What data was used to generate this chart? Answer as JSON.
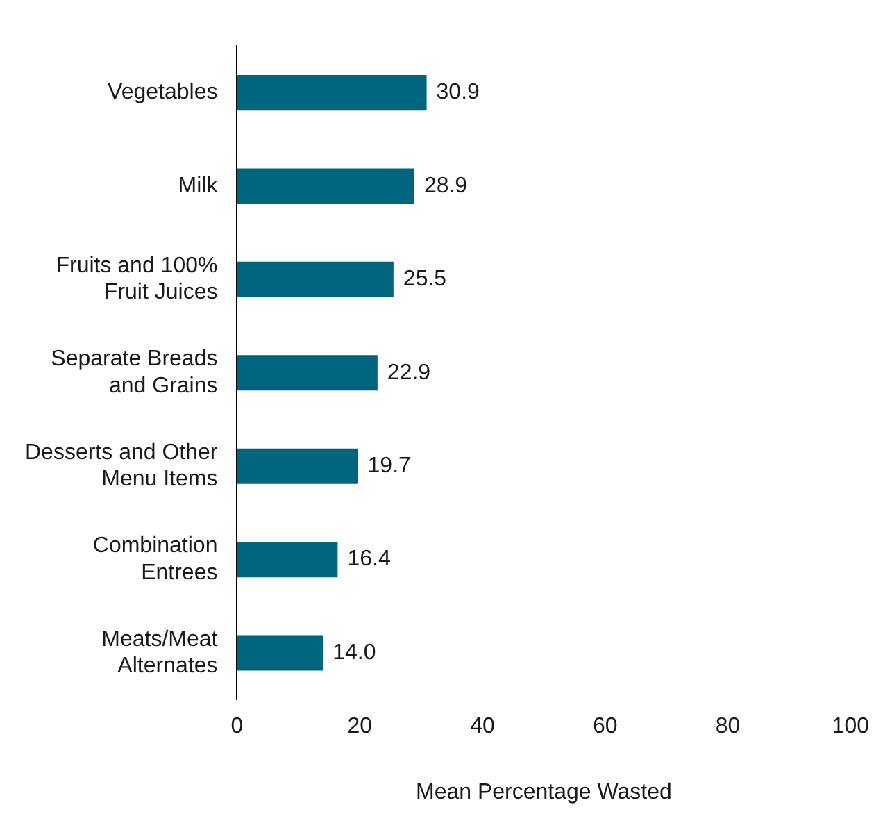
{
  "chart_data": {
    "type": "bar",
    "orientation": "horizontal",
    "xlabel": "Mean Percentage Wasted",
    "categories": [
      "Vegetables",
      "Milk",
      "Fruits and 100%\nFruit Juices",
      "Separate Breads\nand Grains",
      "Desserts and Other\nMenu Items",
      "Combination\nEntrees",
      "Meats/Meat\nAlternates"
    ],
    "values": [
      30.9,
      28.9,
      25.5,
      22.9,
      19.7,
      16.4,
      14.0
    ],
    "value_labels": [
      "30.9",
      "28.9",
      "25.5",
      "22.9",
      "19.7",
      "16.4",
      "14.0"
    ],
    "color": "#006680",
    "xlim": [
      0,
      100
    ],
    "xticks": [
      0,
      20,
      40,
      60,
      80,
      100
    ],
    "grid": false,
    "legend": false
  }
}
